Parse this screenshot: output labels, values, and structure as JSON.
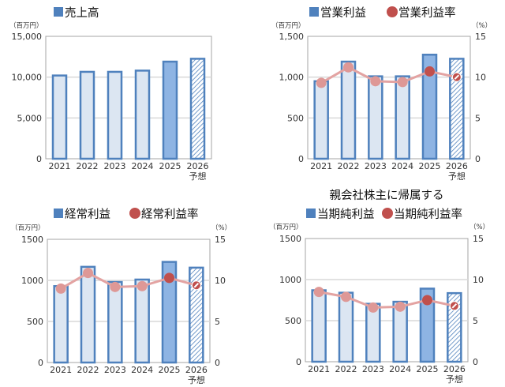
{
  "colors": {
    "bar_stroke": "#4f81bd",
    "bar_fill": "#dce6f2",
    "bar_fill_actual_latest": "#8eb4e3",
    "line": "#e3a3a2",
    "dot": "#de9896",
    "dot_highlight": "#c0504d",
    "grid": "#d9d9d9",
    "axis": "#a6a6a6"
  },
  "chart_data": [
    {
      "type": "bar",
      "legend": [
        "売上高"
      ],
      "unit_left": "（百万円）",
      "categories": [
        "2021",
        "2022",
        "2023",
        "2024",
        "2025",
        "2026"
      ],
      "category_sub": [
        "",
        "",
        "",
        "",
        "",
        "予想"
      ],
      "ylim": [
        0,
        15000
      ],
      "yticks": [
        "0",
        "5,000",
        "10,000",
        "15,000"
      ],
      "grid": true,
      "series": [
        {
          "name": "売上高",
          "values": [
            10200,
            10650,
            10650,
            10800,
            11900,
            12250
          ]
        }
      ],
      "forecast_category": "2026"
    },
    {
      "type": "bar+line",
      "legend": [
        "営業利益",
        "営業利益率"
      ],
      "unit_left": "（百万円）",
      "unit_right": "（%）",
      "categories": [
        "2021",
        "2022",
        "2023",
        "2024",
        "2025",
        "2026"
      ],
      "category_sub": [
        "",
        "",
        "",
        "",
        "",
        "予想"
      ],
      "ylim": [
        0,
        1500
      ],
      "y2lim": [
        0,
        15
      ],
      "yticks": [
        "0",
        "500",
        "1,000",
        "1,500"
      ],
      "y2ticks": [
        "0",
        "5",
        "10",
        "15"
      ],
      "grid": true,
      "series": [
        {
          "name": "営業利益",
          "values": [
            950,
            1190,
            1010,
            1010,
            1275,
            1225
          ]
        },
        {
          "name": "営業利益率",
          "axis": "right",
          "values": [
            9.3,
            11.2,
            9.5,
            9.4,
            10.7,
            10.0
          ]
        }
      ],
      "forecast_category": "2026"
    },
    {
      "type": "bar+line",
      "legend": [
        "経常利益",
        "経常利益率"
      ],
      "unit_left": "（百万円）",
      "unit_right": "（%）",
      "categories": [
        "2021",
        "2022",
        "2023",
        "2024",
        "2025",
        "2026"
      ],
      "category_sub": [
        "",
        "",
        "",
        "",
        "",
        "予想"
      ],
      "ylim": [
        0,
        1500
      ],
      "y2lim": [
        0,
        15
      ],
      "yticks": [
        "0",
        "500",
        "1000",
        "1500"
      ],
      "y2ticks": [
        "0",
        "5",
        "10",
        "15"
      ],
      "grid": true,
      "series": [
        {
          "name": "経常利益",
          "values": [
            930,
            1165,
            980,
            1010,
            1225,
            1155
          ]
        },
        {
          "name": "経常利益率",
          "axis": "right",
          "values": [
            9.0,
            10.9,
            9.2,
            9.3,
            10.3,
            9.4
          ]
        }
      ],
      "forecast_category": "2026"
    },
    {
      "type": "bar+line",
      "title": "親会社株主に帰属する",
      "legend": [
        "当期純利益",
        "当期純利益率"
      ],
      "unit_left": "（百万円）",
      "unit_right": "（%）",
      "categories": [
        "2021",
        "2022",
        "2023",
        "2024",
        "2025",
        "2026"
      ],
      "category_sub": [
        "",
        "",
        "",
        "",
        "",
        "予想"
      ],
      "ylim": [
        0,
        1500
      ],
      "y2lim": [
        0,
        15
      ],
      "yticks": [
        "0",
        "500",
        "1000",
        "1500"
      ],
      "y2ticks": [
        "0",
        "5",
        "10",
        "15"
      ],
      "grid": true,
      "series": [
        {
          "name": "当期純利益",
          "values": [
            870,
            840,
            705,
            730,
            890,
            835
          ]
        },
        {
          "name": "当期純利益率",
          "axis": "right",
          "values": [
            8.5,
            7.9,
            6.6,
            6.7,
            7.5,
            6.8
          ]
        }
      ],
      "forecast_category": "2026"
    }
  ]
}
